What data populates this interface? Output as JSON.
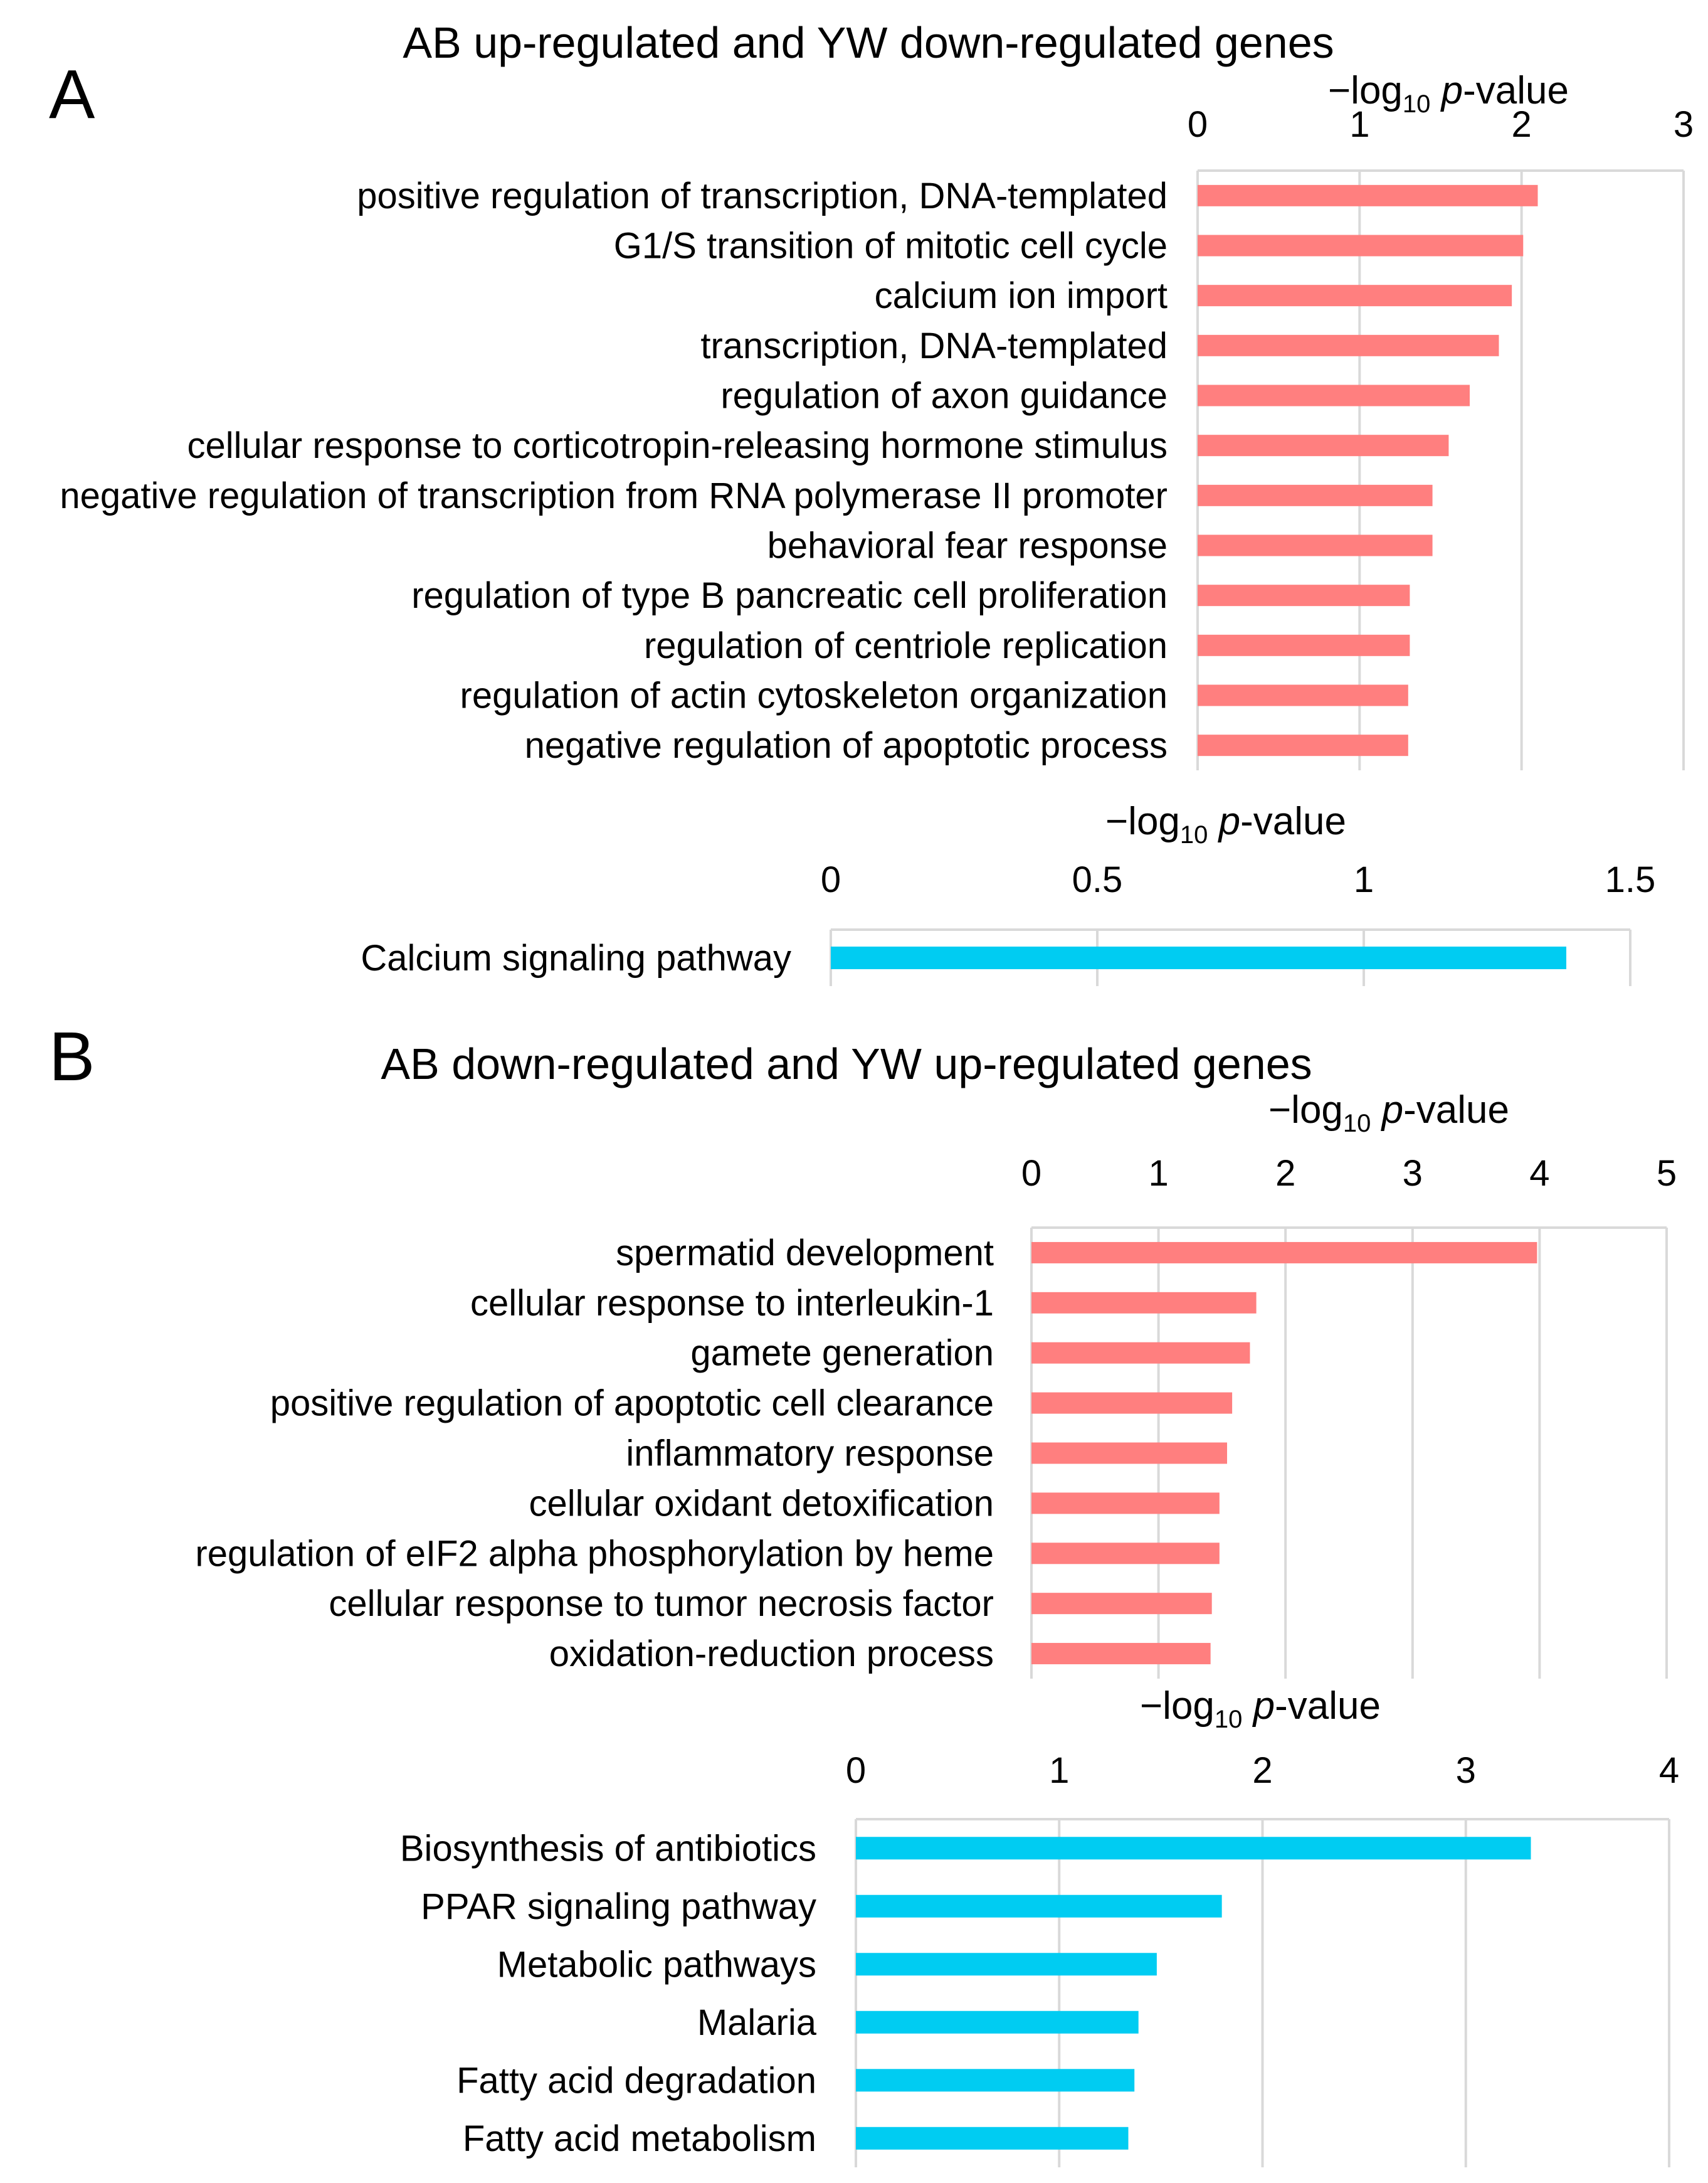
{
  "panels": [
    {
      "label": "A",
      "title": "AB up-regulated and YW down-regulated genes",
      "charts": [
        {
          "type": "bar",
          "orientation": "horizontal",
          "axis_position": "top",
          "xlabel": {
            "prefix": "−log",
            "sub": "10",
            "italic": "p",
            "suffix": "-value"
          },
          "xlim": [
            0,
            3
          ],
          "xticks": [
            "0",
            "1",
            "2",
            "3"
          ],
          "xtick_values": [
            0,
            1,
            2,
            3
          ],
          "grid": true,
          "color": "#ff7f7f",
          "categories": [
            "positive regulation of transcription, DNA-templated",
            "G1/S transition of mitotic cell cycle",
            "calcium ion import",
            "transcription, DNA-templated",
            "regulation of axon guidance",
            "cellular response to corticotropin-releasing hormone stimulus",
            "negative regulation of transcription from RNA polymerase II promoter",
            "behavioral fear response",
            "regulation of type B pancreatic cell proliferation",
            "regulation of centriole replication",
            "regulation of actin cytoskeleton organization",
            "negative regulation of apoptotic process"
          ],
          "values": [
            2.1,
            2.01,
            1.94,
            1.86,
            1.68,
            1.55,
            1.45,
            1.45,
            1.31,
            1.31,
            1.3,
            1.3
          ]
        },
        {
          "type": "bar",
          "orientation": "horizontal",
          "axis_position": "top",
          "xlabel": {
            "prefix": "−log",
            "sub": "10",
            "italic": "p",
            "suffix": "-value"
          },
          "xlim": [
            0,
            1.5
          ],
          "xticks": [
            "0",
            "0.5",
            "1",
            "1.5"
          ],
          "xtick_values": [
            0,
            0.5,
            1,
            1.5
          ],
          "grid": true,
          "color": "#00ccf2",
          "categories": [
            "Calcium signaling pathway"
          ],
          "values": [
            1.38
          ]
        }
      ]
    },
    {
      "label": "B",
      "title": "AB down-regulated and YW up-regulated genes",
      "charts": [
        {
          "type": "bar",
          "orientation": "horizontal",
          "axis_position": "top",
          "xlabel": {
            "prefix": "−log",
            "sub": "10",
            "italic": "p",
            "suffix": "-value"
          },
          "xlim": [
            0,
            5
          ],
          "xticks": [
            "0",
            "1",
            "2",
            "3",
            "4",
            "5"
          ],
          "xtick_values": [
            0,
            1,
            2,
            3,
            4,
            5
          ],
          "grid": true,
          "color": "#ff7f7f",
          "categories": [
            "spermatid development",
            "cellular response to interleukin-1",
            "gamete generation",
            "positive regulation of apoptotic cell clearance",
            "inflammatory response",
            "cellular oxidant detoxification",
            "regulation of eIF2 alpha phosphorylation by heme",
            "cellular response to tumor necrosis factor",
            "oxidation-reduction process"
          ],
          "values": [
            3.98,
            1.77,
            1.72,
            1.58,
            1.54,
            1.48,
            1.48,
            1.42,
            1.41
          ]
        },
        {
          "type": "bar",
          "orientation": "horizontal",
          "axis_position": "top",
          "xlabel": {
            "prefix": "−log",
            "sub": "10",
            "italic": "p",
            "suffix": "-value"
          },
          "xlim": [
            0,
            4
          ],
          "xticks": [
            "0",
            "1",
            "2",
            "3",
            "4"
          ],
          "xtick_values": [
            0,
            1,
            2,
            3,
            4
          ],
          "grid": true,
          "color": "#00ccf2",
          "categories": [
            "Biosynthesis of antibiotics",
            "PPAR signaling pathway",
            "Metabolic pathways",
            "Malaria",
            "Fatty acid degradation",
            "Fatty acid metabolism"
          ],
          "values": [
            3.32,
            1.8,
            1.48,
            1.39,
            1.37,
            1.34
          ]
        }
      ]
    }
  ]
}
